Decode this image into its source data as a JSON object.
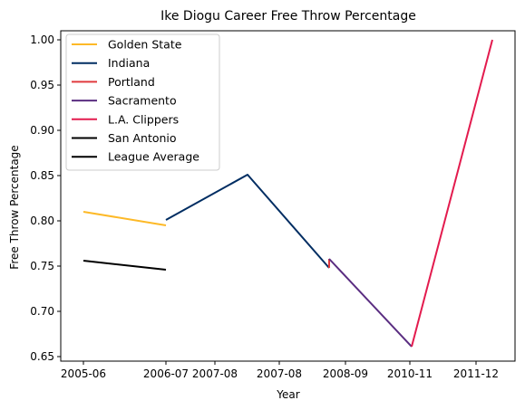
{
  "chart_data": {
    "type": "line",
    "title": "Ike Diogu Career Free Throw Percentage",
    "xlabel": "Year",
    "ylabel": "Free Throw Percentage",
    "categories": [
      "2005-06",
      "2006-07",
      "2007-08",
      "2007-08",
      "2008-09",
      "2010-11",
      "2011-12"
    ],
    "ylim": [
      0.645,
      1.01
    ],
    "yticks": [
      0.65,
      0.7,
      0.75,
      0.8,
      0.85,
      0.9,
      0.95,
      1.0
    ],
    "yticklabels": [
      "0.65",
      "0.70",
      "0.75",
      "0.80",
      "0.85",
      "0.90",
      "0.95",
      "1.00"
    ],
    "grid": false,
    "legend_position": "top-left",
    "series": [
      {
        "name": "Golden State",
        "color": "#FDB927",
        "points": [
          [
            0,
            0.81
          ],
          [
            1,
            0.795
          ]
        ]
      },
      {
        "name": "Indiana",
        "color": "#002D62",
        "points": [
          [
            1,
            0.801
          ],
          [
            2,
            0.851
          ],
          [
            3,
            0.748
          ]
        ]
      },
      {
        "name": "Portland",
        "color": "#E03A3E",
        "points": [
          [
            3,
            0.758
          ],
          [
            3,
            0.748
          ]
        ]
      },
      {
        "name": "Sacramento",
        "color": "#5A2D81",
        "points": [
          [
            3,
            0.758
          ],
          [
            4,
            0.661
          ]
        ]
      },
      {
        "name": "L.A. Clippers",
        "color": "#E31B4E",
        "points": [
          [
            4,
            0.661
          ],
          [
            5,
            1.0
          ]
        ]
      },
      {
        "name": "San Antonio",
        "color": "#000000",
        "points": []
      },
      {
        "name": "League Average",
        "color": "#000000",
        "points": [
          [
            0,
            0.756
          ],
          [
            1,
            0.746
          ]
        ]
      }
    ]
  }
}
